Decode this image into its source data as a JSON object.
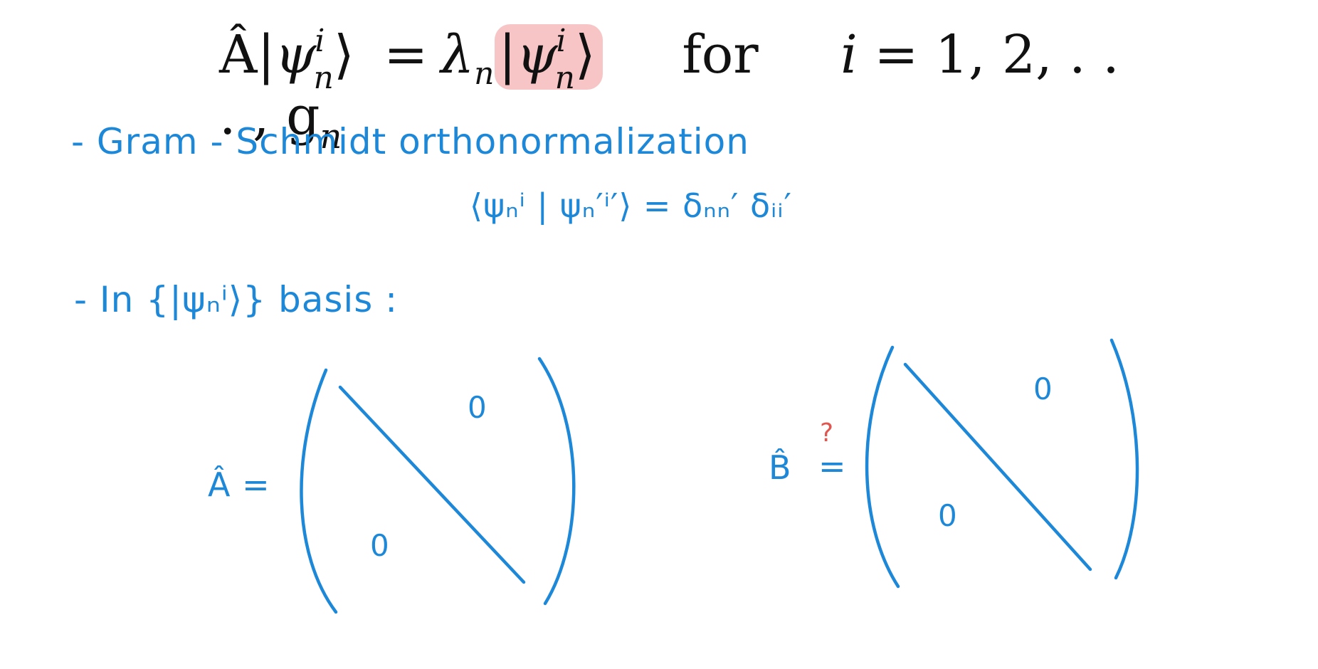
{
  "equation": {
    "lhs_operator": "Â",
    "ket_symbol": "ψ",
    "ket_sup": "i",
    "ket_sub": "n",
    "equals": "=",
    "eigenvalue": "λ",
    "eigenvalue_sub": "n",
    "word_for": "for",
    "index_var": "i",
    "index_range": "= 1, 2, . . . , g",
    "range_sub": "n"
  },
  "notes": {
    "line1": "- Gram - Schmidt orthonormalization",
    "orthonormal_relation": "⟨ψₙⁱ | ψₙ′ⁱ′⟩ = δₙₙ′ δᵢᵢ′",
    "line2": "- In {|ψₙⁱ⟩} basis :"
  },
  "matrix_A": {
    "label": "Â =",
    "upper_zero": "0",
    "lower_zero": "0"
  },
  "matrix_B": {
    "label_symbol": "B̂",
    "question_mark": "?",
    "equals": "=",
    "upper_zero": "0",
    "lower_zero": "0"
  },
  "colors": {
    "ink": "#1e88d8",
    "highlight": "#f7c5c5",
    "question": "#e0574f",
    "text": "#111111"
  }
}
